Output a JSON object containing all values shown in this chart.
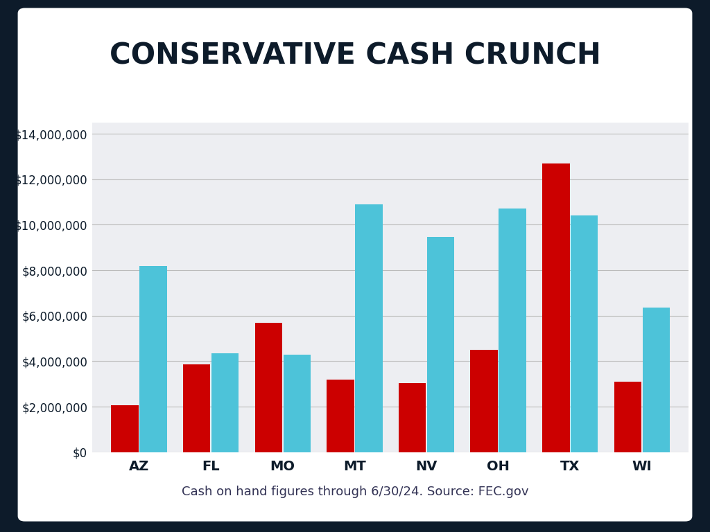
{
  "title": "CONSERVATIVE CASH CRUNCH",
  "caption": "Cash on hand figures through 6/30/24. Source: FEC.gov",
  "categories": [
    "AZ",
    "FL",
    "MO",
    "MT",
    "NV",
    "OH",
    "TX",
    "WI"
  ],
  "red_values": [
    2050000,
    3850000,
    5700000,
    3200000,
    3050000,
    4500000,
    12700000,
    3100000
  ],
  "blue_values": [
    8200000,
    4350000,
    4300000,
    10900000,
    9450000,
    10700000,
    10400000,
    6350000
  ],
  "red_color": "#CC0000",
  "blue_color": "#4DC3D9",
  "background_outer": "#0D1B2A",
  "background_inner": "#EDEEF2",
  "title_color": "#0D1B2A",
  "caption_color": "#333355",
  "axis_color": "#0D1B2A",
  "grid_color": "#BBBBBB",
  "ylim": [
    0,
    14500000
  ],
  "yticks": [
    0,
    2000000,
    4000000,
    6000000,
    8000000,
    10000000,
    12000000,
    14000000
  ],
  "title_fontsize": 30,
  "caption_fontsize": 13,
  "tick_fontsize": 12,
  "bar_width": 0.38,
  "bar_gap": 0.015
}
